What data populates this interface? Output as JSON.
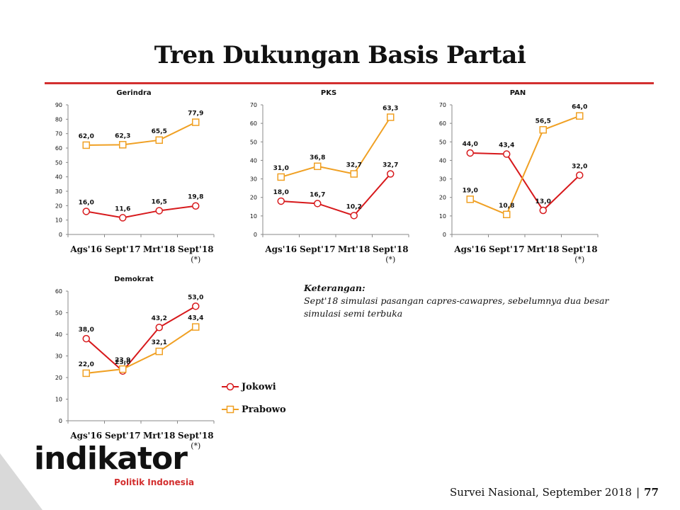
{
  "title": "Tren Dukungan Basis Partai",
  "note": {
    "title": "Keterangan:",
    "text": "Sept'18 simulasi pasangan capres-cawapres, sebelumnya dua besar simulasi semi terbuka"
  },
  "legend": {
    "jokowi": "Jokowi",
    "prabowo": "Prabowo"
  },
  "colors": {
    "jokowi": "#d7191c",
    "prabowo": "#f0a023",
    "accent_rule": "#d32f2f"
  },
  "logo": {
    "word": "indikator",
    "sub": "Politik Indonesia"
  },
  "footer": {
    "survey": "Survei Nasional, September 2018",
    "separator": "|",
    "page": "77"
  },
  "chart_data": [
    {
      "type": "line",
      "title": "Gerindra",
      "categories": [
        "Ags'16",
        "Sept'17",
        "Mrt'18",
        "Sept'18"
      ],
      "category_note": "(*)",
      "ylim": [
        0,
        90
      ],
      "yticks": [
        0,
        10,
        20,
        30,
        40,
        50,
        60,
        70,
        80,
        90
      ],
      "series": [
        {
          "name": "Jokowi",
          "values": [
            16.0,
            11.6,
            16.5,
            19.8
          ],
          "labels": [
            "16,0",
            "11,6",
            "16,5",
            "19,8"
          ]
        },
        {
          "name": "Prabowo",
          "values": [
            62.0,
            62.3,
            65.5,
            77.9
          ],
          "labels": [
            "62,0",
            "62,3",
            "65,5",
            "77,9"
          ]
        }
      ]
    },
    {
      "type": "line",
      "title": "PKS",
      "categories": [
        "Ags'16",
        "Sept'17",
        "Mrt'18",
        "Sept'18"
      ],
      "category_note": "(*)",
      "ylim": [
        0,
        70
      ],
      "yticks": [
        0,
        10,
        20,
        30,
        40,
        50,
        60,
        70
      ],
      "series": [
        {
          "name": "Jokowi",
          "values": [
            18.0,
            16.7,
            10.2,
            32.7
          ],
          "labels": [
            "18,0",
            "16,7",
            "10,2",
            "32,7"
          ]
        },
        {
          "name": "Prabowo",
          "values": [
            31.0,
            36.8,
            32.7,
            63.3
          ],
          "labels": [
            "31,0",
            "36,8",
            "32,7",
            "63,3"
          ]
        }
      ]
    },
    {
      "type": "line",
      "title": "PAN",
      "categories": [
        "Ags'16",
        "Sept'17",
        "Mrt'18",
        "Sept'18"
      ],
      "category_note": "(*)",
      "ylim": [
        0,
        70
      ],
      "yticks": [
        0,
        10,
        20,
        30,
        40,
        50,
        60,
        70
      ],
      "series": [
        {
          "name": "Jokowi",
          "values": [
            44.0,
            43.4,
            13.0,
            32.0
          ],
          "labels": [
            "44,0",
            "43,4",
            "13,0",
            "32,0"
          ]
        },
        {
          "name": "Prabowo",
          "values": [
            19.0,
            10.8,
            56.5,
            64.0
          ],
          "labels": [
            "19,0",
            "10,8",
            "56,5",
            "64,0"
          ]
        }
      ]
    },
    {
      "type": "line",
      "title": "Demokrat",
      "categories": [
        "Ags'16",
        "Sept'17",
        "Mrt'18",
        "Sept'18"
      ],
      "category_note": "(*)",
      "ylim": [
        0,
        60
      ],
      "yticks": [
        0,
        10,
        20,
        30,
        40,
        50,
        60
      ],
      "series": [
        {
          "name": "Jokowi",
          "values": [
            38.0,
            23.0,
            43.2,
            53.0
          ],
          "labels": [
            "38,0",
            "23,0",
            "43,2",
            "53,0"
          ]
        },
        {
          "name": "Prabowo",
          "values": [
            22.0,
            23.9,
            32.1,
            43.4
          ],
          "labels": [
            "22,0",
            "23,9",
            "32,1",
            "43,4"
          ]
        }
      ]
    }
  ]
}
